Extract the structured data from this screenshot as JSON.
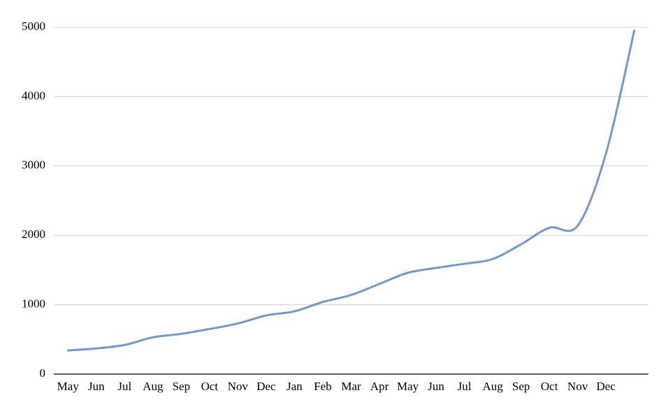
{
  "chart_data": {
    "type": "line",
    "categories": [
      "May",
      "Jun",
      "Jul",
      "Aug",
      "Sep",
      "Oct",
      "Nov",
      "Dec",
      "Jan",
      "Feb",
      "Mar",
      "Apr",
      "May",
      "Jun",
      "Jul",
      "Aug",
      "Sep",
      "Oct",
      "Nov",
      "Dec",
      null
    ],
    "values": [
      340,
      370,
      420,
      530,
      580,
      650,
      730,
      845,
      905,
      1040,
      1140,
      1300,
      1460,
      1530,
      1590,
      1660,
      1870,
      2110,
      2140,
      3180,
      4950
    ],
    "color": "#7399cc",
    "ylim": [
      0,
      5000
    ],
    "yticks": [
      0,
      1000,
      2000,
      3000,
      4000,
      5000
    ],
    "grid": true
  }
}
